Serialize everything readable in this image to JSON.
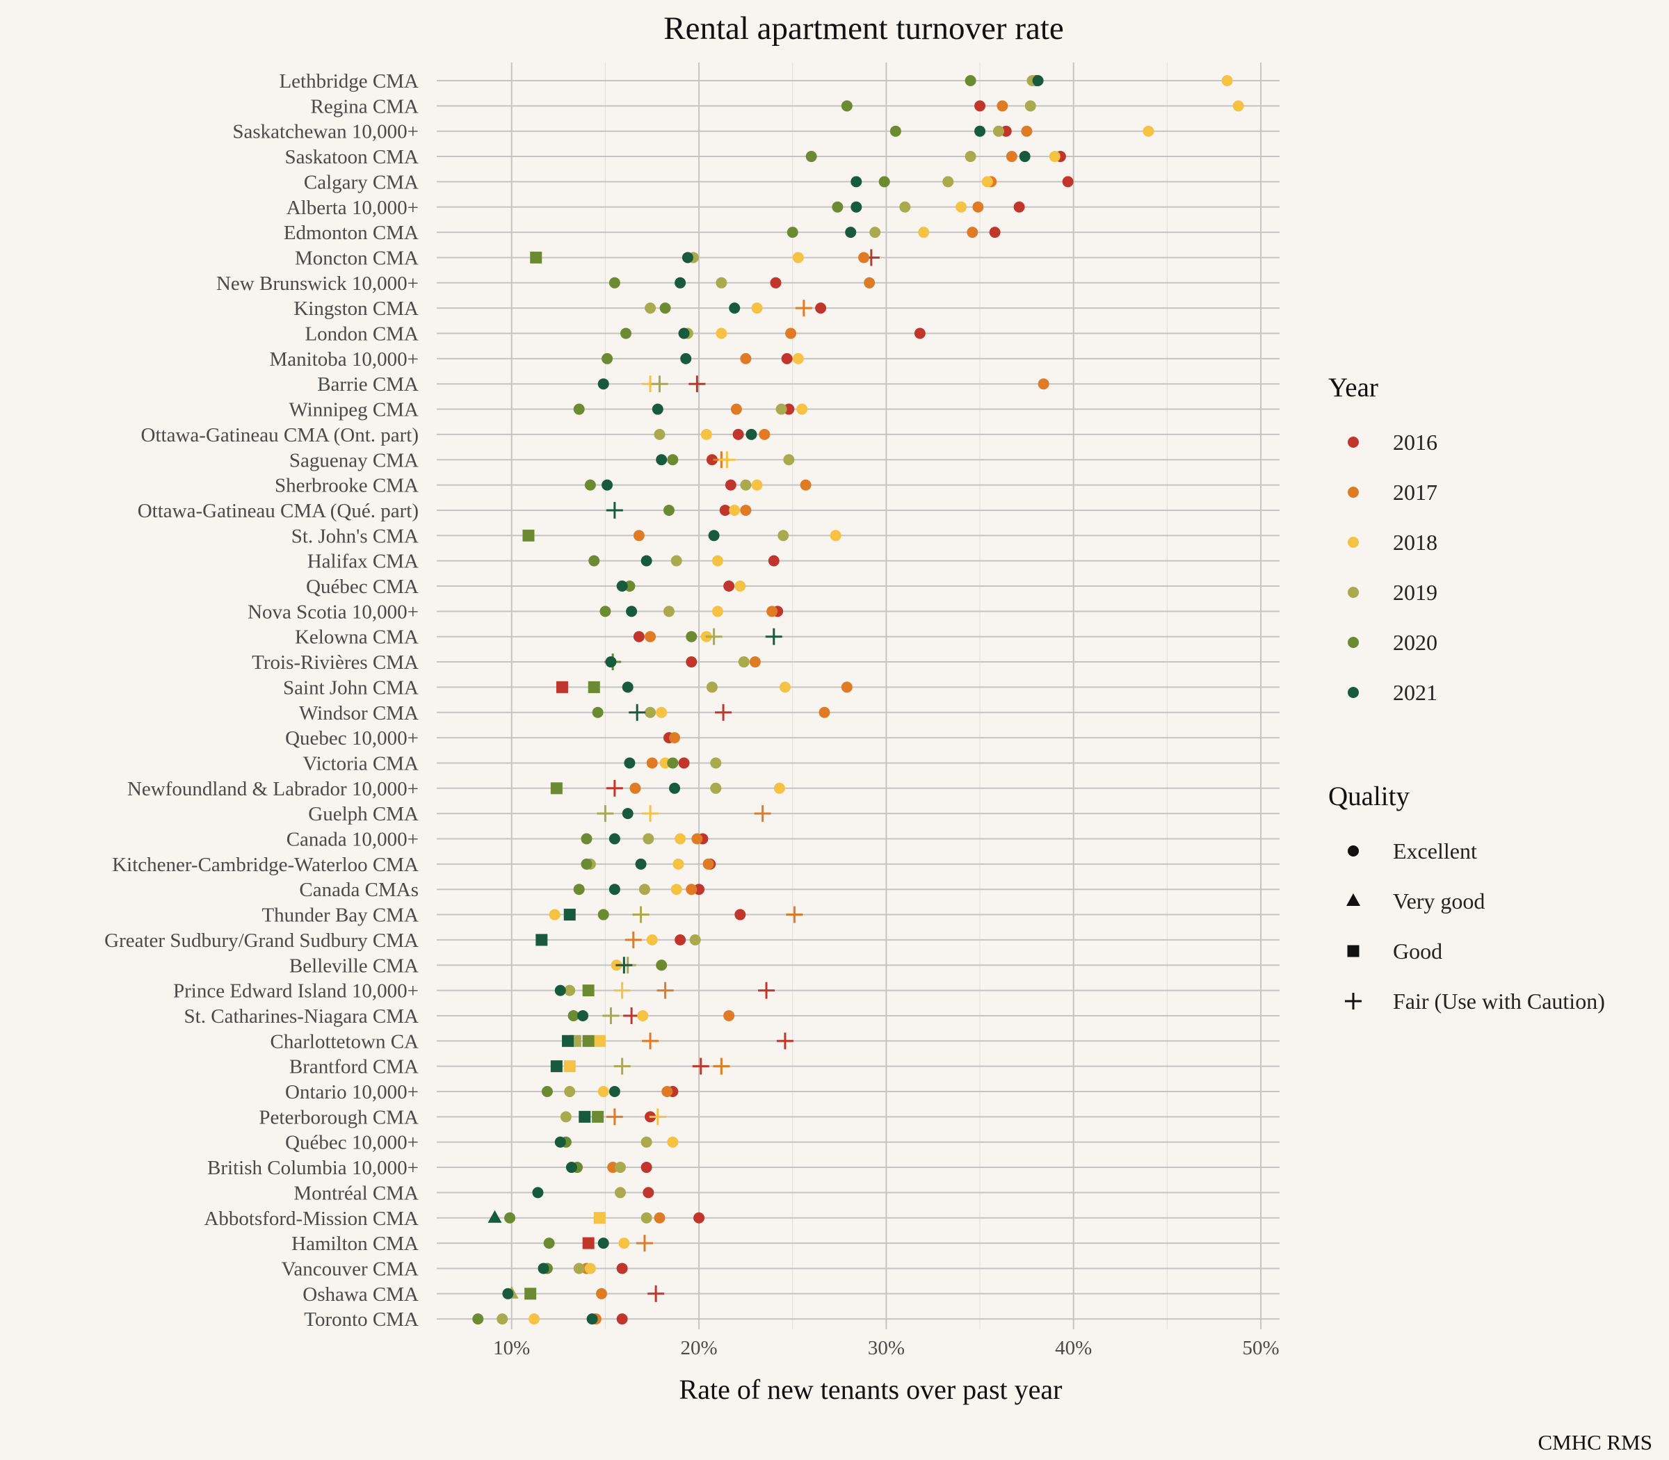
{
  "chart_data": {
    "type": "scatter",
    "title": "Rental apartment turnover rate",
    "xlabel": "Rate of new tenants over past year",
    "ylabel": "",
    "caption": "CMHC RMS",
    "xlim": [
      0.06,
      0.51
    ],
    "xticks": [
      0.1,
      0.2,
      0.3,
      0.4,
      0.5
    ],
    "xtick_labels": [
      "10%",
      "20%",
      "30%",
      "40%",
      "50%"
    ],
    "grid": true,
    "legend_placement": "right",
    "years": [
      "2016",
      "2017",
      "2018",
      "2019",
      "2020",
      "2021"
    ],
    "year_colors": [
      "#c0362c",
      "#e07b25",
      "#f6c243",
      "#a9a94e",
      "#6b8a32",
      "#185a3e"
    ],
    "legend_title_year": "Year",
    "legend_title_quality": "Quality",
    "qualities": [
      "Excellent",
      "Very good",
      "Good",
      "Fair (Use with Caution)"
    ],
    "categories": [
      "Lethbridge CMA",
      "Regina CMA",
      "Saskatchewan 10,000+",
      "Saskatoon CMA",
      "Calgary CMA",
      "Alberta 10,000+",
      "Edmonton CMA",
      "Moncton CMA",
      "New Brunswick 10,000+",
      "Kingston CMA",
      "London CMA",
      "Manitoba 10,000+",
      "Barrie CMA",
      "Winnipeg CMA",
      "Ottawa-Gatineau CMA (Ont. part)",
      "Saguenay CMA",
      "Sherbrooke CMA",
      "Ottawa-Gatineau CMA (Qué. part)",
      "St. John's CMA",
      "Halifax CMA",
      "Québec CMA",
      "Nova Scotia 10,000+",
      "Kelowna CMA",
      "Trois-Rivières CMA",
      "Saint John CMA",
      "Windsor CMA",
      "Quebec 10,000+",
      "Victoria CMA",
      "Newfoundland & Labrador 10,000+",
      "Guelph CMA",
      "Canada 10,000+",
      "Kitchener-Cambridge-Waterloo CMA",
      "Canada CMAs",
      "Thunder Bay CMA",
      "Greater Sudbury/Grand Sudbury CMA",
      "Belleville CMA",
      "Prince Edward Island 10,000+",
      "St. Catharines-Niagara CMA",
      "Charlottetown CA",
      "Brantford CMA",
      "Ontario 10,000+",
      "Peterborough CMA",
      "Québec 10,000+",
      "British Columbia 10,000+",
      "Montréal CMA",
      "Abbotsford-Mission CMA",
      "Hamilton CMA",
      "Vancouver CMA",
      "Oshawa CMA",
      "Toronto CMA"
    ],
    "series": [
      {
        "name": "2016",
        "values": [
          [
            0.38,
            "E"
          ],
          [
            0.35,
            "E"
          ],
          [
            0.364,
            "E"
          ],
          [
            0.393,
            "E"
          ],
          [
            0.397,
            "E"
          ],
          [
            0.371,
            "E"
          ],
          [
            0.358,
            "E"
          ],
          [
            0.292,
            "F"
          ],
          [
            0.241,
            "E"
          ],
          [
            0.265,
            "E"
          ],
          [
            0.318,
            "E"
          ],
          [
            0.247,
            "E"
          ],
          [
            0.199,
            "F"
          ],
          [
            0.248,
            "E"
          ],
          [
            0.221,
            "E"
          ],
          [
            0.207,
            "E"
          ],
          [
            0.217,
            "E"
          ],
          [
            0.214,
            "E"
          ],
          null,
          [
            0.24,
            "E"
          ],
          [
            0.216,
            "E"
          ],
          [
            0.242,
            "E"
          ],
          [
            0.168,
            "E"
          ],
          [
            0.196,
            "E"
          ],
          [
            0.127,
            "G"
          ],
          [
            0.213,
            "F"
          ],
          [
            0.184,
            "E"
          ],
          [
            0.192,
            "E"
          ],
          [
            0.155,
            "F"
          ],
          null,
          [
            0.202,
            "E"
          ],
          [
            0.206,
            "E"
          ],
          [
            0.2,
            "E"
          ],
          [
            0.222,
            "E"
          ],
          [
            0.19,
            "E"
          ],
          null,
          [
            0.236,
            "F"
          ],
          [
            0.164,
            "F"
          ],
          [
            0.246,
            "F"
          ],
          [
            0.201,
            "F"
          ],
          [
            0.186,
            "E"
          ],
          [
            0.174,
            "E"
          ],
          null,
          [
            0.172,
            "E"
          ],
          [
            0.173,
            "E"
          ],
          [
            0.2,
            "E"
          ],
          [
            0.141,
            "G"
          ],
          [
            0.159,
            "E"
          ],
          [
            0.177,
            "F"
          ],
          [
            0.159,
            "E"
          ]
        ]
      },
      {
        "name": "2017",
        "values": [
          null,
          [
            0.362,
            "E"
          ],
          [
            0.375,
            "E"
          ],
          [
            0.367,
            "E"
          ],
          [
            0.356,
            "E"
          ],
          [
            0.349,
            "E"
          ],
          [
            0.346,
            "E"
          ],
          [
            0.288,
            "E"
          ],
          [
            0.291,
            "E"
          ],
          [
            0.256,
            "F"
          ],
          [
            0.249,
            "E"
          ],
          [
            0.225,
            "E"
          ],
          [
            0.384,
            "E"
          ],
          [
            0.22,
            "E"
          ],
          [
            0.235,
            "E"
          ],
          [
            0.212,
            "F"
          ],
          [
            0.257,
            "E"
          ],
          [
            0.225,
            "E"
          ],
          [
            0.168,
            "E"
          ],
          null,
          null,
          [
            0.239,
            "E"
          ],
          [
            0.174,
            "E"
          ],
          [
            0.23,
            "E"
          ],
          [
            0.279,
            "E"
          ],
          [
            0.267,
            "E"
          ],
          [
            0.187,
            "E"
          ],
          [
            0.175,
            "E"
          ],
          [
            0.166,
            "E"
          ],
          [
            0.234,
            "F"
          ],
          [
            0.199,
            "E"
          ],
          [
            0.205,
            "E"
          ],
          [
            0.196,
            "E"
          ],
          [
            0.251,
            "F"
          ],
          [
            0.165,
            "F"
          ],
          null,
          [
            0.182,
            "F"
          ],
          [
            0.216,
            "E"
          ],
          [
            0.174,
            "F"
          ],
          [
            0.212,
            "F"
          ],
          [
            0.183,
            "E"
          ],
          [
            0.155,
            "F"
          ],
          null,
          [
            0.154,
            "E"
          ],
          null,
          [
            0.179,
            "E"
          ],
          [
            0.171,
            "F"
          ],
          [
            0.14,
            "E"
          ],
          [
            0.148,
            "E"
          ],
          [
            0.145,
            "E"
          ]
        ]
      },
      {
        "name": "2018",
        "values": [
          [
            0.482,
            "E"
          ],
          [
            0.488,
            "E"
          ],
          [
            0.44,
            "E"
          ],
          [
            0.39,
            "E"
          ],
          [
            0.354,
            "E"
          ],
          [
            0.34,
            "E"
          ],
          [
            0.32,
            "E"
          ],
          [
            0.253,
            "E"
          ],
          null,
          [
            0.231,
            "E"
          ],
          [
            0.212,
            "E"
          ],
          [
            0.253,
            "E"
          ],
          [
            0.174,
            "F"
          ],
          [
            0.255,
            "E"
          ],
          [
            0.204,
            "E"
          ],
          [
            0.215,
            "F"
          ],
          [
            0.231,
            "E"
          ],
          [
            0.219,
            "E"
          ],
          [
            0.273,
            "E"
          ],
          [
            0.21,
            "E"
          ],
          [
            0.222,
            "E"
          ],
          [
            0.21,
            "E"
          ],
          [
            0.204,
            "E"
          ],
          null,
          [
            0.246,
            "E"
          ],
          [
            0.18,
            "E"
          ],
          null,
          [
            0.182,
            "E"
          ],
          [
            0.243,
            "E"
          ],
          [
            0.174,
            "F"
          ],
          [
            0.19,
            "E"
          ],
          [
            0.189,
            "E"
          ],
          [
            0.188,
            "E"
          ],
          [
            0.123,
            "E"
          ],
          [
            0.175,
            "E"
          ],
          [
            0.156,
            "E"
          ],
          [
            0.159,
            "F"
          ],
          [
            0.17,
            "E"
          ],
          [
            0.147,
            "G"
          ],
          [
            0.131,
            "G"
          ],
          [
            0.149,
            "E"
          ],
          [
            0.178,
            "F"
          ],
          [
            0.186,
            "E"
          ],
          null,
          null,
          [
            0.147,
            "G"
          ],
          [
            0.16,
            "E"
          ],
          [
            0.142,
            "E"
          ],
          null,
          [
            0.112,
            "E"
          ]
        ]
      },
      {
        "name": "2019",
        "values": [
          [
            0.378,
            "E"
          ],
          [
            0.377,
            "E"
          ],
          [
            0.36,
            "E"
          ],
          [
            0.345,
            "E"
          ],
          [
            0.333,
            "E"
          ],
          [
            0.31,
            "E"
          ],
          [
            0.294,
            "E"
          ],
          [
            0.197,
            "E"
          ],
          [
            0.212,
            "E"
          ],
          [
            0.174,
            "E"
          ],
          [
            0.194,
            "E"
          ],
          null,
          [
            0.179,
            "F"
          ],
          [
            0.244,
            "E"
          ],
          [
            0.179,
            "E"
          ],
          [
            0.248,
            "E"
          ],
          [
            0.225,
            "E"
          ],
          null,
          [
            0.245,
            "E"
          ],
          [
            0.188,
            "E"
          ],
          null,
          [
            0.184,
            "E"
          ],
          [
            0.208,
            "F"
          ],
          [
            0.224,
            "E"
          ],
          [
            0.207,
            "E"
          ],
          [
            0.174,
            "E"
          ],
          null,
          [
            0.209,
            "E"
          ],
          [
            0.209,
            "E"
          ],
          [
            0.15,
            "F"
          ],
          [
            0.173,
            "E"
          ],
          [
            0.142,
            "E"
          ],
          [
            0.171,
            "E"
          ],
          [
            0.169,
            "F"
          ],
          [
            0.198,
            "E"
          ],
          [
            0.162,
            "F"
          ],
          [
            0.131,
            "E"
          ],
          [
            0.153,
            "F"
          ],
          [
            0.134,
            "G"
          ],
          [
            0.159,
            "F"
          ],
          [
            0.131,
            "E"
          ],
          [
            0.129,
            "E"
          ],
          [
            0.172,
            "E"
          ],
          [
            0.158,
            "E"
          ],
          [
            0.158,
            "E"
          ],
          [
            0.172,
            "E"
          ],
          null,
          [
            0.136,
            "E"
          ],
          [
            0.1,
            "VG"
          ],
          [
            0.095,
            "E"
          ]
        ]
      },
      {
        "name": "2020",
        "values": [
          [
            0.345,
            "E"
          ],
          [
            0.279,
            "E"
          ],
          [
            0.305,
            "E"
          ],
          [
            0.26,
            "E"
          ],
          [
            0.299,
            "E"
          ],
          [
            0.274,
            "E"
          ],
          [
            0.25,
            "E"
          ],
          [
            0.113,
            "G"
          ],
          [
            0.155,
            "E"
          ],
          [
            0.182,
            "E"
          ],
          [
            0.161,
            "E"
          ],
          [
            0.151,
            "E"
          ],
          null,
          [
            0.136,
            "E"
          ],
          null,
          [
            0.186,
            "E"
          ],
          [
            0.142,
            "E"
          ],
          [
            0.184,
            "E"
          ],
          [
            0.109,
            "G"
          ],
          [
            0.144,
            "E"
          ],
          [
            0.163,
            "E"
          ],
          [
            0.15,
            "E"
          ],
          [
            0.196,
            "E"
          ],
          [
            0.154,
            "F"
          ],
          [
            0.144,
            "G"
          ],
          [
            0.146,
            "E"
          ],
          null,
          [
            0.186,
            "E"
          ],
          [
            0.124,
            "G"
          ],
          null,
          [
            0.14,
            "E"
          ],
          [
            0.14,
            "E"
          ],
          [
            0.136,
            "E"
          ],
          [
            0.149,
            "E"
          ],
          null,
          [
            0.18,
            "E"
          ],
          [
            0.141,
            "G"
          ],
          [
            0.133,
            "E"
          ],
          [
            0.141,
            "G"
          ],
          null,
          [
            0.119,
            "E"
          ],
          [
            0.146,
            "G"
          ],
          [
            0.129,
            "E"
          ],
          [
            0.135,
            "E"
          ],
          null,
          [
            0.099,
            "E"
          ],
          [
            0.12,
            "E"
          ],
          [
            0.119,
            "E"
          ],
          [
            0.11,
            "G"
          ],
          [
            0.082,
            "E"
          ]
        ]
      },
      {
        "name": "2021",
        "values": [
          [
            0.381,
            "E"
          ],
          null,
          [
            0.35,
            "E"
          ],
          [
            0.374,
            "E"
          ],
          [
            0.284,
            "E"
          ],
          [
            0.284,
            "E"
          ],
          [
            0.281,
            "E"
          ],
          [
            0.194,
            "E"
          ],
          [
            0.19,
            "E"
          ],
          [
            0.219,
            "E"
          ],
          [
            0.192,
            "E"
          ],
          [
            0.193,
            "E"
          ],
          [
            0.149,
            "E"
          ],
          [
            0.178,
            "E"
          ],
          [
            0.228,
            "E"
          ],
          [
            0.18,
            "E"
          ],
          [
            0.151,
            "E"
          ],
          [
            0.155,
            "F"
          ],
          [
            0.208,
            "E"
          ],
          [
            0.172,
            "E"
          ],
          [
            0.159,
            "E"
          ],
          [
            0.164,
            "E"
          ],
          [
            0.24,
            "F"
          ],
          [
            0.153,
            "E"
          ],
          [
            0.162,
            "E"
          ],
          [
            0.167,
            "F"
          ],
          null,
          [
            0.163,
            "E"
          ],
          [
            0.187,
            "E"
          ],
          [
            0.162,
            "E"
          ],
          [
            0.155,
            "E"
          ],
          [
            0.169,
            "E"
          ],
          [
            0.155,
            "E"
          ],
          [
            0.131,
            "G"
          ],
          [
            0.116,
            "G"
          ],
          [
            0.16,
            "F"
          ],
          [
            0.126,
            "E"
          ],
          [
            0.138,
            "E"
          ],
          [
            0.13,
            "G"
          ],
          [
            0.124,
            "G"
          ],
          [
            0.155,
            "E"
          ],
          [
            0.139,
            "G"
          ],
          [
            0.126,
            "E"
          ],
          [
            0.132,
            "E"
          ],
          [
            0.114,
            "E"
          ],
          [
            0.091,
            "VG"
          ],
          [
            0.149,
            "E"
          ],
          [
            0.117,
            "E"
          ],
          [
            0.098,
            "E"
          ],
          [
            0.143,
            "E"
          ]
        ]
      }
    ]
  }
}
